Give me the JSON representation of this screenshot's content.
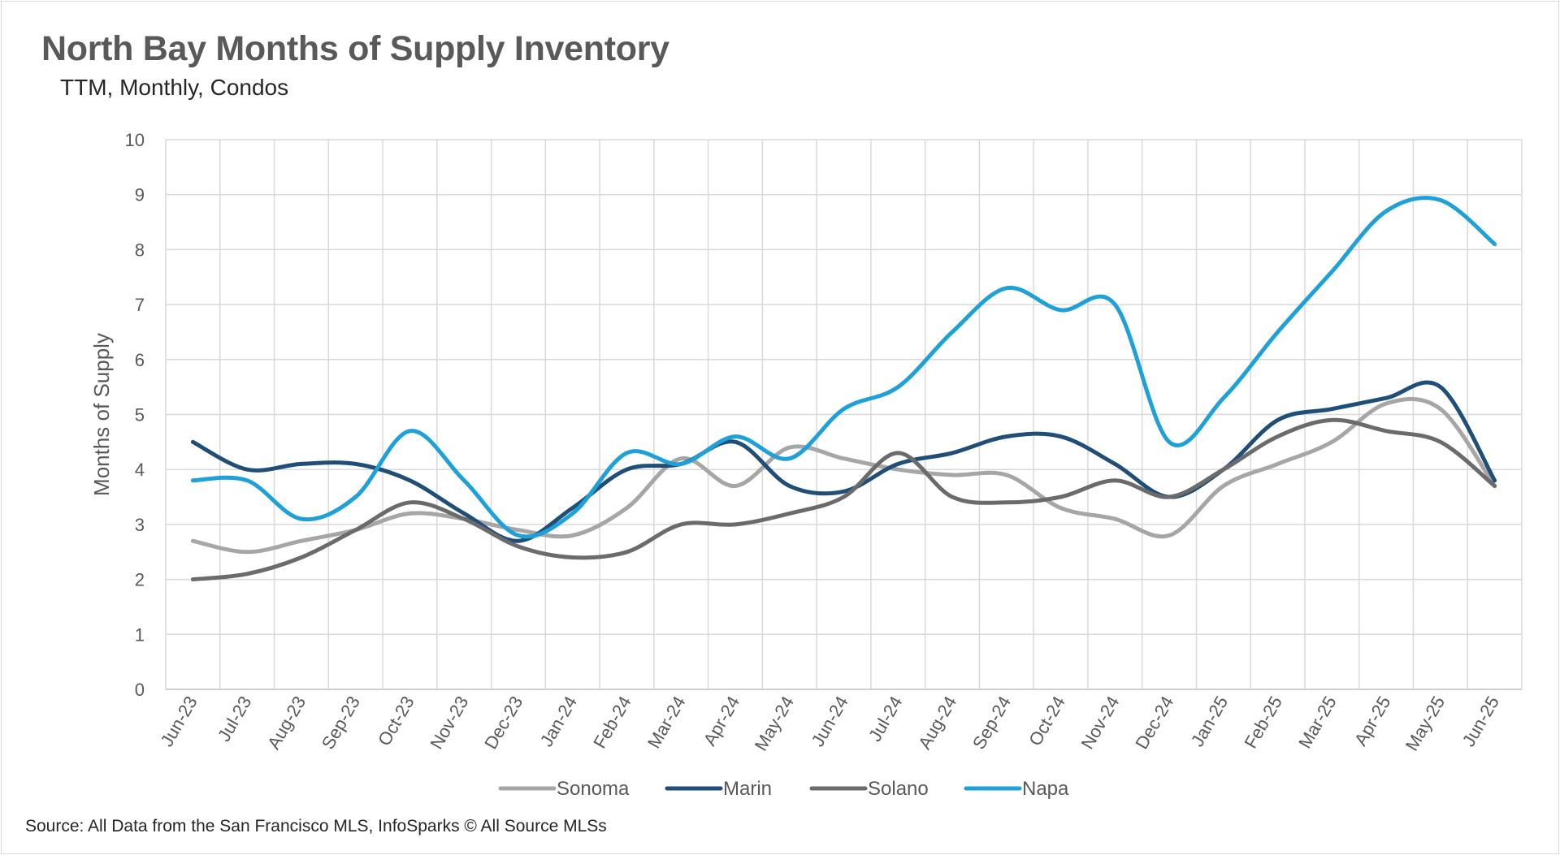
{
  "title": "North Bay Months of Supply Inventory",
  "subtitle": "TTM, Monthly, Condos",
  "source": "Source: All Data from the San Francisco MLS, InfoSparks © All Source MLSs",
  "chart_data": {
    "type": "line",
    "title": "North Bay Months of Supply Inventory",
    "subtitle": "TTM, Monthly, Condos",
    "ylabel": "Months of Supply",
    "xlabel": "",
    "ylim": [
      0,
      10
    ],
    "yticks": [
      0,
      1,
      2,
      3,
      4,
      5,
      6,
      7,
      8,
      9,
      10
    ],
    "grid": true,
    "legend_position": "bottom",
    "categories": [
      "Jun-23",
      "Jul-23",
      "Aug-23",
      "Sep-23",
      "Oct-23",
      "Nov-23",
      "Dec-23",
      "Jan-24",
      "Feb-24",
      "Mar-24",
      "Apr-24",
      "May-24",
      "Jun-24",
      "Jul-24",
      "Aug-24",
      "Sep-24",
      "Oct-24",
      "Nov-24",
      "Dec-24",
      "Jan-25",
      "Feb-25",
      "Mar-25",
      "Apr-25",
      "May-25",
      "Jun-25"
    ],
    "series": [
      {
        "name": "Sonoma",
        "color": "#a6a6a6",
        "values": [
          2.7,
          2.5,
          2.7,
          2.9,
          3.2,
          3.1,
          2.9,
          2.8,
          3.3,
          4.2,
          3.7,
          4.4,
          4.2,
          4.0,
          3.9,
          3.9,
          3.3,
          3.1,
          2.8,
          3.7,
          4.1,
          4.5,
          5.2,
          5.1,
          3.7
        ]
      },
      {
        "name": "Marin",
        "color": "#1f4e79",
        "values": [
          4.5,
          4.0,
          4.1,
          4.1,
          3.8,
          3.2,
          2.7,
          3.3,
          4.0,
          4.1,
          4.5,
          3.7,
          3.6,
          4.1,
          4.3,
          4.6,
          4.6,
          4.1,
          3.5,
          4.0,
          4.9,
          5.1,
          5.3,
          5.5,
          3.8
        ]
      },
      {
        "name": "Solano",
        "color": "#6b6b6b",
        "values": [
          2.0,
          2.1,
          2.4,
          2.9,
          3.4,
          3.1,
          2.6,
          2.4,
          2.5,
          3.0,
          3.0,
          3.2,
          3.5,
          4.3,
          3.5,
          3.4,
          3.5,
          3.8,
          3.5,
          4.0,
          4.6,
          4.9,
          4.7,
          4.5,
          3.7
        ]
      },
      {
        "name": "Napa",
        "color": "#1ea0d8",
        "values": [
          3.8,
          3.8,
          3.1,
          3.5,
          4.7,
          3.8,
          2.8,
          3.2,
          4.3,
          4.1,
          4.6,
          4.2,
          5.1,
          5.5,
          6.5,
          7.3,
          6.9,
          7.0,
          4.5,
          5.3,
          6.5,
          7.6,
          8.7,
          8.9,
          8.1
        ]
      }
    ]
  }
}
